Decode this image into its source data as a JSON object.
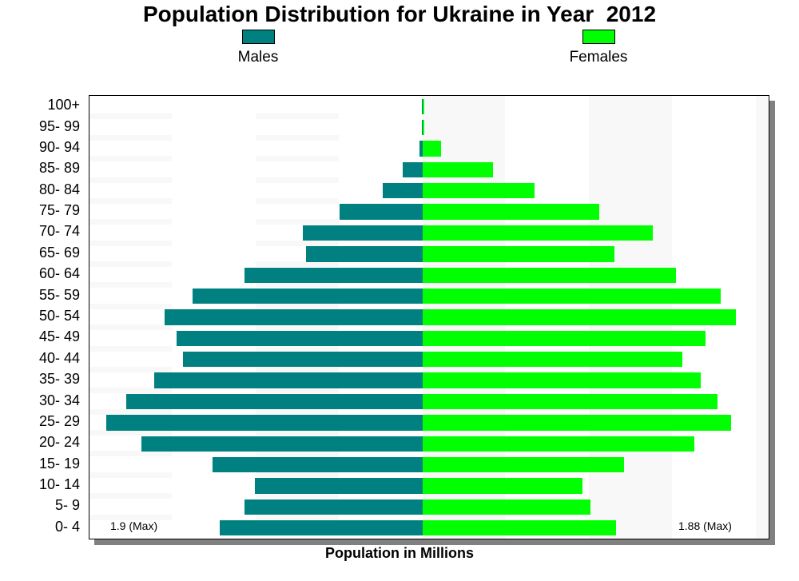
{
  "chart_data": {
    "type": "bar",
    "orientation": "horizontal-pyramid",
    "title": "Population Distribution for Ukraine in Year  2012",
    "xlabel": "Population in Millions",
    "categories": [
      "0- 4",
      "5- 9",
      "10- 14",
      "15- 19",
      "20- 24",
      "25- 29",
      "30- 34",
      "35- 39",
      "40- 44",
      "45- 49",
      "50- 54",
      "55- 59",
      "60- 64",
      "65- 69",
      "70- 74",
      "75- 79",
      "80- 84",
      "85- 89",
      "90- 94",
      "95- 99",
      "100+"
    ],
    "series": [
      {
        "name": "Males",
        "color": "#008080",
        "values": [
          1.22,
          1.07,
          1.01,
          1.26,
          1.69,
          1.9,
          1.78,
          1.61,
          1.44,
          1.48,
          1.55,
          1.38,
          1.07,
          0.7,
          0.72,
          0.5,
          0.24,
          0.12,
          0.02,
          0.003,
          0.001
        ]
      },
      {
        "name": "Females",
        "color": "#00ff00",
        "values": [
          1.16,
          1.01,
          0.96,
          1.21,
          1.63,
          1.85,
          1.77,
          1.67,
          1.56,
          1.7,
          1.88,
          1.79,
          1.52,
          1.15,
          1.38,
          1.06,
          0.67,
          0.42,
          0.11,
          0.01,
          0.005
        ]
      }
    ],
    "annotations": {
      "male_max": "1.9 (Max)",
      "female_max": "1.88 (Max)"
    },
    "legend": "top",
    "grid": false
  }
}
